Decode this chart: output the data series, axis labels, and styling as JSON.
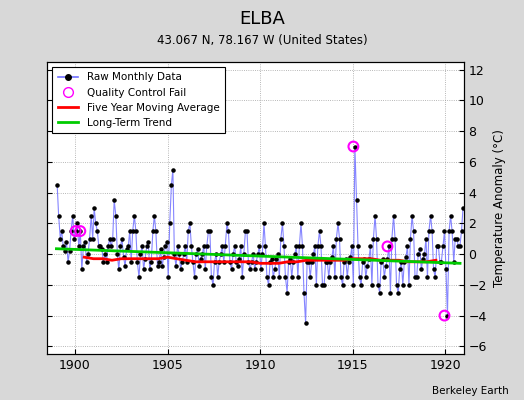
{
  "title": "ELBA",
  "subtitle": "43.067 N, 78.167 W (United States)",
  "ylabel": "Temperature Anomaly (°C)",
  "credit": "Berkeley Earth",
  "xlim": [
    1898.5,
    1921.0
  ],
  "ylim": [
    -6.5,
    12.5
  ],
  "yticks": [
    -6,
    -4,
    -2,
    0,
    2,
    4,
    6,
    8,
    10,
    12
  ],
  "xticks": [
    1900,
    1905,
    1910,
    1915,
    1920
  ],
  "bg_color": "#d8d8d8",
  "plot_bg_color": "#ffffff",
  "raw_line_color": "#7070ff",
  "raw_dot_color": "#000000",
  "qc_fail_color": "#ff00ff",
  "moving_avg_color": "#ff0000",
  "trend_color": "#00cc00",
  "raw_data_years": [
    1899.04,
    1899.12,
    1899.21,
    1899.29,
    1899.37,
    1899.46,
    1899.54,
    1899.63,
    1899.71,
    1899.79,
    1899.88,
    1899.96,
    1900.04,
    1900.12,
    1900.21,
    1900.29,
    1900.37,
    1900.46,
    1900.54,
    1900.63,
    1900.71,
    1900.79,
    1900.88,
    1900.96,
    1901.04,
    1901.12,
    1901.21,
    1901.29,
    1901.37,
    1901.46,
    1901.54,
    1901.63,
    1901.71,
    1901.79,
    1901.88,
    1901.96,
    1902.04,
    1902.12,
    1902.21,
    1902.29,
    1902.37,
    1902.46,
    1902.54,
    1902.63,
    1902.71,
    1902.79,
    1902.88,
    1902.96,
    1903.04,
    1903.12,
    1903.21,
    1903.29,
    1903.37,
    1903.46,
    1903.54,
    1903.63,
    1903.71,
    1903.79,
    1903.88,
    1903.96,
    1904.04,
    1904.12,
    1904.21,
    1904.29,
    1904.37,
    1904.46,
    1904.54,
    1904.63,
    1904.71,
    1904.79,
    1904.88,
    1904.96,
    1905.04,
    1905.12,
    1905.21,
    1905.29,
    1905.37,
    1905.46,
    1905.54,
    1905.63,
    1905.71,
    1905.79,
    1905.88,
    1905.96,
    1906.04,
    1906.12,
    1906.21,
    1906.29,
    1906.37,
    1906.46,
    1906.54,
    1906.63,
    1906.71,
    1906.79,
    1906.88,
    1906.96,
    1907.04,
    1907.12,
    1907.21,
    1907.29,
    1907.37,
    1907.46,
    1907.54,
    1907.63,
    1907.71,
    1907.79,
    1907.88,
    1907.96,
    1908.04,
    1908.12,
    1908.21,
    1908.29,
    1908.37,
    1908.46,
    1908.54,
    1908.63,
    1908.71,
    1908.79,
    1908.88,
    1908.96,
    1909.04,
    1909.12,
    1909.21,
    1909.29,
    1909.37,
    1909.46,
    1909.54,
    1909.63,
    1909.71,
    1909.79,
    1909.88,
    1909.96,
    1910.04,
    1910.12,
    1910.21,
    1910.29,
    1910.37,
    1910.46,
    1910.54,
    1910.63,
    1910.71,
    1910.79,
    1910.88,
    1910.96,
    1911.04,
    1911.12,
    1911.21,
    1911.29,
    1911.37,
    1911.46,
    1911.54,
    1911.63,
    1911.71,
    1911.79,
    1911.88,
    1911.96,
    1912.04,
    1912.12,
    1912.21,
    1912.29,
    1912.37,
    1912.46,
    1912.54,
    1912.63,
    1912.71,
    1912.79,
    1912.88,
    1912.96,
    1913.04,
    1913.12,
    1913.21,
    1913.29,
    1913.37,
    1913.46,
    1913.54,
    1913.63,
    1913.71,
    1913.79,
    1913.88,
    1913.96,
    1914.04,
    1914.12,
    1914.21,
    1914.29,
    1914.37,
    1914.46,
    1914.54,
    1914.63,
    1914.71,
    1914.79,
    1914.88,
    1914.96,
    1915.04,
    1915.12,
    1915.21,
    1915.29,
    1915.37,
    1915.46,
    1915.54,
    1915.63,
    1915.71,
    1915.79,
    1915.88,
    1915.96,
    1916.04,
    1916.12,
    1916.21,
    1916.29,
    1916.37,
    1916.46,
    1916.54,
    1916.63,
    1916.71,
    1916.79,
    1916.88,
    1916.96,
    1917.04,
    1917.12,
    1917.21,
    1917.29,
    1917.37,
    1917.46,
    1917.54,
    1917.63,
    1917.71,
    1917.79,
    1917.88,
    1917.96,
    1918.04,
    1918.12,
    1918.21,
    1918.29,
    1918.37,
    1918.46,
    1918.54,
    1918.63,
    1918.71,
    1918.79,
    1918.88,
    1918.96,
    1919.04,
    1919.12,
    1919.21,
    1919.29,
    1919.37,
    1919.46,
    1919.54,
    1919.63,
    1919.71,
    1919.79,
    1919.88,
    1919.96,
    1920.04,
    1920.12,
    1920.21,
    1920.29,
    1920.37,
    1920.46,
    1920.54,
    1920.63,
    1920.71,
    1920.79,
    1920.88,
    1920.96
  ],
  "raw_data_values": [
    4.5,
    2.5,
    1.0,
    1.5,
    0.5,
    0.2,
    0.8,
    -0.5,
    0.2,
    1.5,
    2.5,
    1.0,
    1.5,
    2.0,
    0.5,
    1.5,
    -1.0,
    0.5,
    0.8,
    -0.5,
    0.0,
    1.0,
    2.5,
    1.0,
    3.0,
    2.0,
    1.5,
    0.5,
    0.5,
    0.3,
    -0.5,
    0.0,
    -0.5,
    0.5,
    1.0,
    0.5,
    1.0,
    3.5,
    2.5,
    0.0,
    -1.0,
    0.5,
    1.0,
    -0.2,
    -0.8,
    0.3,
    0.5,
    1.5,
    -0.5,
    1.5,
    2.5,
    1.5,
    -0.5,
    -1.5,
    0.0,
    0.5,
    -1.0,
    -0.3,
    0.5,
    0.8,
    -1.0,
    -0.5,
    1.5,
    2.5,
    1.5,
    -0.8,
    -0.5,
    0.3,
    -0.8,
    -0.2,
    0.5,
    0.8,
    -1.5,
    2.0,
    4.5,
    5.5,
    0.0,
    -0.8,
    0.5,
    0.0,
    -1.0,
    -0.5,
    0.0,
    0.5,
    -0.5,
    1.5,
    2.0,
    0.5,
    -0.5,
    -1.5,
    0.0,
    0.3,
    -0.8,
    -0.3,
    0.0,
    0.5,
    -1.0,
    0.5,
    1.5,
    1.5,
    -1.5,
    -2.0,
    -0.5,
    0.0,
    -1.5,
    -0.5,
    0.0,
    0.5,
    -0.5,
    0.5,
    2.0,
    1.5,
    -0.5,
    -1.0,
    0.0,
    0.5,
    -0.5,
    -0.8,
    -0.3,
    0.5,
    -1.5,
    0.0,
    1.5,
    1.5,
    -0.5,
    -1.0,
    -0.5,
    0.0,
    -1.0,
    -0.5,
    0.0,
    0.5,
    -1.0,
    0.0,
    2.0,
    0.5,
    -1.5,
    -2.0,
    -0.5,
    -0.3,
    -1.5,
    -1.0,
    -0.3,
    0.0,
    -1.5,
    1.0,
    2.0,
    0.5,
    -1.5,
    -2.5,
    -0.5,
    -0.3,
    -1.5,
    -0.5,
    0.0,
    0.5,
    -1.5,
    0.5,
    2.0,
    0.5,
    -2.5,
    -4.5,
    -0.5,
    -0.5,
    -1.5,
    -0.5,
    0.0,
    0.5,
    -2.0,
    0.5,
    1.5,
    0.5,
    -2.0,
    -2.0,
    -0.5,
    -0.5,
    -1.5,
    -0.5,
    -0.2,
    0.5,
    -1.5,
    1.0,
    2.0,
    1.0,
    -1.5,
    -2.0,
    -0.5,
    -0.3,
    -1.5,
    -0.5,
    -0.2,
    0.5,
    -2.0,
    7.0,
    3.5,
    0.5,
    -1.5,
    -2.0,
    -0.5,
    -0.3,
    -1.5,
    -0.8,
    -0.3,
    0.5,
    -2.0,
    1.0,
    2.5,
    1.0,
    -2.0,
    -2.5,
    -0.5,
    -0.3,
    -1.5,
    -0.8,
    -0.3,
    0.5,
    -2.5,
    1.0,
    2.5,
    1.0,
    -2.0,
    -2.5,
    -1.0,
    -0.5,
    -2.0,
    -0.5,
    -0.2,
    0.5,
    -2.0,
    1.0,
    2.5,
    1.5,
    -1.5,
    -1.5,
    0.0,
    0.3,
    -1.0,
    -0.3,
    0.0,
    1.0,
    -1.5,
    1.5,
    2.5,
    1.5,
    -1.0,
    -1.5,
    0.5,
    0.5,
    -0.5,
    -0.5,
    0.5,
    1.5,
    -1.0,
    -4.0,
    1.5,
    2.5,
    1.5,
    -0.5,
    1.0,
    1.0,
    0.5,
    0.5,
    1.5,
    3.0
  ],
  "qc_fail_years": [
    1900.04,
    1900.29,
    1915.04,
    1916.88,
    1919.96
  ],
  "qc_fail_values": [
    1.5,
    1.5,
    7.0,
    0.5,
    -4.0
  ],
  "moving_avg_years": [
    1900.5,
    1901.0,
    1901.5,
    1902.0,
    1902.5,
    1903.0,
    1903.5,
    1904.0,
    1904.5,
    1905.0,
    1905.5,
    1906.0,
    1906.5,
    1907.0,
    1907.5,
    1908.0,
    1908.5,
    1909.0,
    1909.5,
    1910.0,
    1910.5,
    1911.0,
    1911.5,
    1912.0,
    1912.5,
    1913.0,
    1913.5,
    1914.0,
    1914.5,
    1915.0,
    1915.5,
    1916.0,
    1916.5,
    1917.0,
    1917.5,
    1918.0,
    1918.5,
    1919.0,
    1919.5
  ],
  "moving_avg_values": [
    -0.2,
    -0.3,
    -0.3,
    -0.4,
    -0.3,
    -0.3,
    -0.3,
    -0.3,
    -0.3,
    -0.2,
    -0.3,
    -0.4,
    -0.5,
    -0.5,
    -0.5,
    -0.5,
    -0.5,
    -0.5,
    -0.5,
    -0.6,
    -0.6,
    -0.6,
    -0.5,
    -0.5,
    -0.4,
    -0.4,
    -0.4,
    -0.4,
    -0.4,
    -0.3,
    -0.3,
    -0.3,
    -0.4,
    -0.4,
    -0.4,
    -0.5,
    -0.5,
    -0.5,
    -0.4
  ],
  "trend_years": [
    1899.0,
    1920.8
  ],
  "trend_values": [
    0.35,
    -0.6
  ]
}
